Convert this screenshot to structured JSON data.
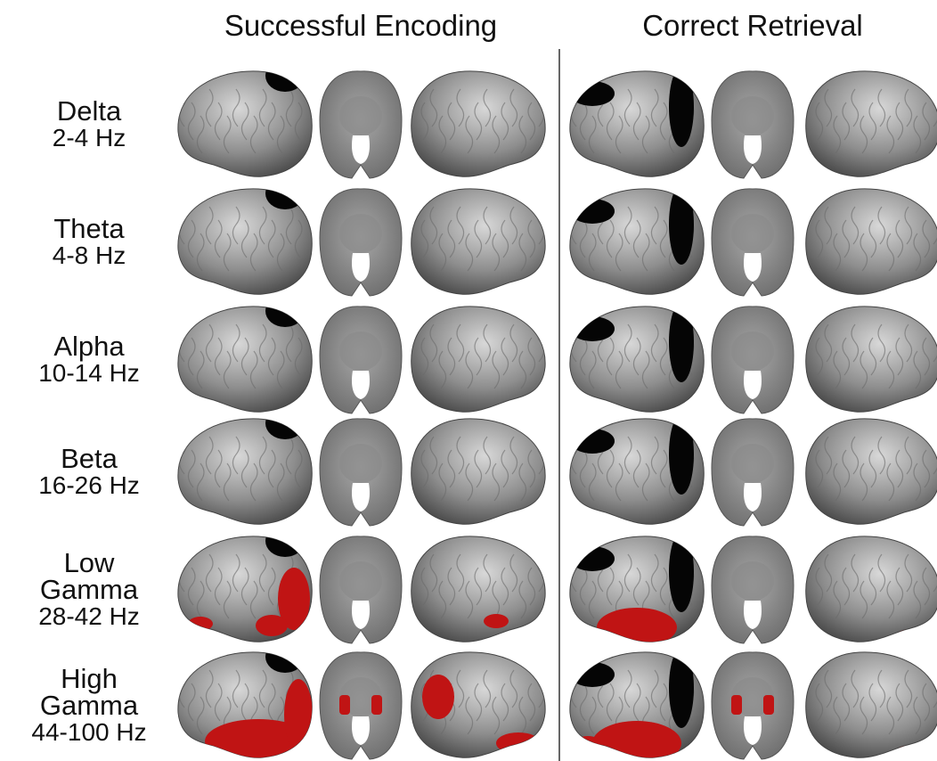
{
  "header": {
    "columns": [
      "Successful Encoding",
      "Correct Retrieval"
    ]
  },
  "rows": [
    {
      "band": "Delta",
      "range": "2-4 Hz"
    },
    {
      "band": "Theta",
      "range": "4-8 Hz"
    },
    {
      "band": "Alpha",
      "range": "10-14 Hz"
    },
    {
      "band": "Beta",
      "range": "16-26 Hz"
    },
    {
      "band": "Low Gamma",
      "range": "28-42 Hz"
    },
    {
      "band": "High Gamma",
      "range": "44-100 Hz"
    }
  ]
}
